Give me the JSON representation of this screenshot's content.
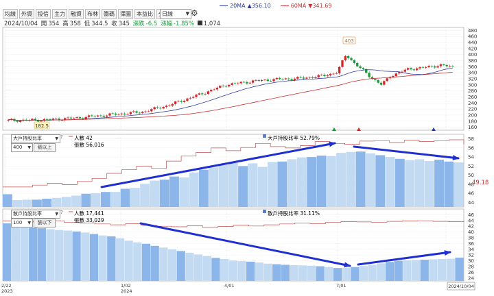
{
  "toolbar": {
    "tabs": [
      "均線",
      "外資",
      "投信",
      "主力",
      "融資",
      "布林",
      "籌碼",
      "擇圖",
      "本益比",
      "分價圖"
    ],
    "period": "日線",
    "settings_icon": "gear-icon"
  },
  "ma_legend": [
    {
      "label": "20MA",
      "value": "▲356.10",
      "color": "#2b3aa0",
      "value_color": "#2b3aa0"
    },
    {
      "label": "60MA",
      "value": "▼341.69",
      "color": "#c83030",
      "value_color": "#c83030"
    }
  ],
  "quote": {
    "date": "2024/10/04",
    "open_label": "開",
    "open": "354",
    "high_label": "高",
    "high": "358",
    "low_label": "低",
    "low": "344.5",
    "close_label": "收",
    "close": "345",
    "change_label": "漲跌",
    "change": "-6.5",
    "pct_label": "漲幅",
    "pct": "-1.85%",
    "vol_icon": "volume-icon",
    "volume": "1,074",
    "down_color": "#1a9a3a"
  },
  "panel2": {
    "select": "大戶持股比率",
    "threshold": "400",
    "threshold_unit": "張以上",
    "people_label": "人數 42",
    "shares_label": "張數 56,016",
    "ratio_label": "大戶持股比率 52.79%",
    "right_tag": "49.18"
  },
  "panel3": {
    "select": "散戶持股比率",
    "threshold": "100",
    "threshold_unit": "張以下",
    "people_label": "人數 17,441",
    "shares_label": "張數 33,029",
    "ratio_label": "散戶持股比率 31.11%"
  },
  "chart_data": [
    {
      "type": "candlestick",
      "name": "price",
      "ylim": [
        150,
        490
      ],
      "y_ticks": [
        160,
        180,
        200,
        220,
        240,
        260,
        280,
        300,
        320,
        340,
        360,
        380,
        400,
        420,
        440,
        460,
        480
      ],
      "annotations": [
        {
          "label": "403"
        },
        {
          "label": "182.5"
        }
      ],
      "series": [
        {
          "name": "20MA"
        },
        {
          "name": "60MA"
        }
      ],
      "price_path": [
        [
          0,
          182
        ],
        [
          0.08,
          184
        ],
        [
          0.15,
          190
        ],
        [
          0.22,
          200
        ],
        [
          0.3,
          210
        ],
        [
          0.36,
          232
        ],
        [
          0.43,
          268
        ],
        [
          0.49,
          300
        ],
        [
          0.55,
          312
        ],
        [
          0.6,
          318
        ],
        [
          0.66,
          322
        ],
        [
          0.71,
          330
        ],
        [
          0.74,
          342
        ],
        [
          0.76,
          400
        ],
        [
          0.78,
          370
        ],
        [
          0.8,
          345
        ],
        [
          0.82,
          320
        ],
        [
          0.84,
          300
        ],
        [
          0.86,
          330
        ],
        [
          0.9,
          352
        ],
        [
          0.94,
          358
        ],
        [
          0.97,
          365
        ],
        [
          1.0,
          360
        ]
      ]
    },
    {
      "type": "bar+line",
      "name": "大戶持股比率",
      "ylim": [
        43,
        59
      ],
      "y_ticks": [
        44,
        46,
        48,
        50,
        52,
        54,
        56,
        58
      ],
      "bars": [
        45.8,
        44.5,
        44.6,
        44.6,
        44.8,
        45.0,
        45.2,
        45.5,
        45.9,
        46.0,
        46.3,
        46.3,
        47.0,
        47.2,
        48.1,
        48.8,
        49.0,
        49.7,
        49.5,
        50.6,
        51.2,
        51.7,
        52.2,
        52.7,
        52.0,
        52.6,
        51.8,
        52.9,
        53.0,
        53.5,
        53.9,
        54.0,
        54.3,
        54.2,
        54.9,
        55.1,
        55.2,
        54.8,
        54.4,
        54.0,
        53.6,
        53.3,
        53.5,
        53.1,
        53.4,
        53.0,
        52.8
      ]
    },
    {
      "type": "bar+line",
      "name": "散戶持股比率",
      "ylim": [
        23,
        48
      ],
      "y_ticks": [
        24,
        26,
        28,
        30,
        32,
        34,
        36,
        38,
        40,
        42,
        44,
        46
      ],
      "bars": [
        43.0,
        42.5,
        42.0,
        41.5,
        41.3,
        41.0,
        40.7,
        40.5,
        40.2,
        39.8,
        39.3,
        38.8,
        38.5,
        37.8,
        37.0,
        36.4,
        35.9,
        35.2,
        34.6,
        34.0,
        33.4,
        32.8,
        32.2,
        31.6,
        31.0,
        30.6,
        30.1,
        29.9,
        29.7,
        29.4,
        29.0,
        28.8,
        28.6,
        28.5,
        28.4,
        28.3,
        28.1,
        27.8,
        27.5,
        27.6,
        27.8,
        28.2,
        28.6,
        29.1,
        29.6,
        30.0,
        30.2,
        30.3,
        30.4,
        30.5,
        30.6,
        30.7,
        31.1
      ]
    }
  ],
  "x_axis": {
    "labels": [
      "2023",
      "1/02",
      "2024",
      "4/01",
      "7/01",
      "2024/10/04"
    ]
  }
}
